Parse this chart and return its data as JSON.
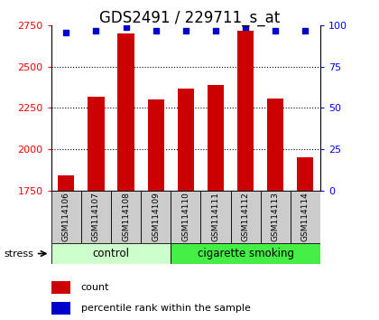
{
  "title": "GDS2491 / 229711_s_at",
  "samples": [
    "GSM114106",
    "GSM114107",
    "GSM114108",
    "GSM114109",
    "GSM114110",
    "GSM114111",
    "GSM114112",
    "GSM114113",
    "GSM114114"
  ],
  "counts": [
    1840,
    2320,
    2700,
    2300,
    2370,
    2390,
    2720,
    2310,
    1950
  ],
  "percentile_ranks": [
    96,
    97,
    99,
    97,
    97,
    97,
    99,
    97,
    97
  ],
  "group_spans": [
    {
      "name": "control",
      "start": 0,
      "end": 3,
      "color": "#ccffcc"
    },
    {
      "name": "cigarette smoking",
      "start": 4,
      "end": 8,
      "color": "#44ee44"
    }
  ],
  "bar_color": "#cc0000",
  "dot_color": "#0000cc",
  "ylim_left": [
    1750,
    2750
  ],
  "ylim_right": [
    0,
    100
  ],
  "yticks_left": [
    1750,
    2000,
    2250,
    2500,
    2750
  ],
  "yticks_right": [
    0,
    25,
    50,
    75,
    100
  ],
  "grid_ticks": [
    2000,
    2250,
    2500
  ],
  "title_fontsize": 12,
  "tick_fontsize": 8,
  "sample_box_color": "#cccccc",
  "plot_bg": "#ffffff"
}
